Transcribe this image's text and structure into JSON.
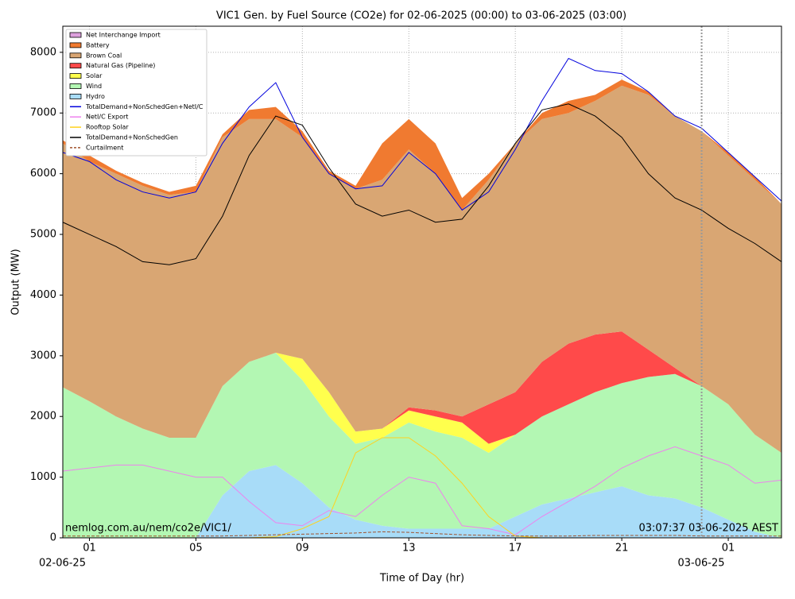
{
  "chart_data": {
    "type": "stacked_area",
    "title": "VIC1 Gen. by Fuel Source (CO2e) for 02-06-2025 (00:00) to 03-06-2025 (03:00)",
    "x_label": "Time of Day (hr)",
    "y_label": "Output (MW)",
    "x": [
      0,
      1,
      2,
      3,
      4,
      5,
      6,
      7,
      8,
      9,
      10,
      11,
      12,
      13,
      14,
      15,
      16,
      17,
      18,
      19,
      20,
      21,
      22,
      23,
      24,
      25,
      26,
      27
    ],
    "xlim": [
      0,
      27
    ],
    "xticks": [
      {
        "value": 1,
        "label": "01"
      },
      {
        "value": 5,
        "label": "05"
      },
      {
        "value": 9,
        "label": "09"
      },
      13,
      17,
      21,
      25
    ],
    "xticks_fixed": [
      {
        "value": 25,
        "label": "01"
      }
    ],
    "date_labels": [
      {
        "value": 1,
        "label": "02-06-25"
      },
      {
        "value": 25,
        "label": "03-06-25"
      }
    ],
    "day_boundary": 24,
    "ylim": [
      0,
      8430
    ],
    "yticks": [
      0,
      1000,
      2000,
      3000,
      4000,
      5000,
      6000,
      7000,
      8000
    ],
    "grid": true,
    "legend": "upper left",
    "annotations": [
      "nemlog.com.au/nem/co2e/VIC1/",
      "03:07:37 03-06-2025 AEST"
    ],
    "series": [
      {
        "name": "Net Interchange Import",
        "color": "#dda0dd",
        "values": [
          0,
          0,
          0,
          0,
          0,
          0,
          0,
          0,
          0,
          0,
          0,
          0,
          0,
          0,
          0,
          0,
          0,
          0,
          0,
          0,
          0,
          0,
          0,
          0,
          0,
          0,
          0,
          0
        ]
      },
      {
        "name": "Battery",
        "color": "#f07a30",
        "values": [
          50,
          100,
          50,
          50,
          50,
          100,
          50,
          150,
          200,
          100,
          50,
          50,
          600,
          500,
          500,
          200,
          100,
          0,
          100,
          200,
          100,
          100,
          50,
          0,
          0,
          50,
          50,
          0
        ]
      },
      {
        "name": "Brown Coal",
        "color": "#d9a673",
        "values": [
          4020,
          3950,
          4000,
          4000,
          4000,
          4050,
          4100,
          4000,
          3850,
          3650,
          3600,
          4000,
          4100,
          4250,
          3900,
          3400,
          3700,
          4100,
          4000,
          3800,
          3850,
          4050,
          4200,
          4150,
          4200,
          4100,
          4200,
          4100
        ]
      },
      {
        "name": "Natural Gas (Pipeline)",
        "color": "#ff4a4a",
        "values": [
          0,
          0,
          0,
          0,
          0,
          0,
          0,
          0,
          0,
          0,
          0,
          0,
          0,
          50,
          100,
          100,
          650,
          700,
          900,
          1000,
          950,
          850,
          450,
          100,
          0,
          0,
          0,
          0
        ]
      },
      {
        "name": "Solar",
        "color": "#ffff4d",
        "values": [
          0,
          0,
          0,
          0,
          0,
          0,
          0,
          0,
          0,
          350,
          400,
          200,
          150,
          200,
          250,
          250,
          150,
          0,
          0,
          0,
          0,
          0,
          0,
          0,
          0,
          0,
          0,
          0
        ]
      },
      {
        "name": "Wind",
        "color": "#b3f7b3",
        "values": [
          2480,
          2250,
          2000,
          1800,
          1650,
          1650,
          1800,
          1800,
          1850,
          1700,
          1500,
          1250,
          1450,
          1750,
          1600,
          1500,
          1250,
          1350,
          1450,
          1550,
          1650,
          1700,
          1950,
          2050,
          2000,
          1900,
          1600,
          1400
        ]
      },
      {
        "name": "Hydro",
        "color": "#a8dcf8",
        "values": [
          0,
          0,
          0,
          0,
          0,
          0,
          700,
          1100,
          1200,
          900,
          500,
          300,
          200,
          150,
          150,
          150,
          150,
          350,
          550,
          650,
          750,
          850,
          700,
          650,
          500,
          300,
          100,
          0
        ]
      }
    ],
    "lines": [
      {
        "name": "TotalDemand+NonSchedGen+NetI/C",
        "color": "#0000dd",
        "values": [
          6350,
          6200,
          5900,
          5700,
          5600,
          5700,
          6500,
          7100,
          7500,
          6600,
          6000,
          5750,
          5800,
          6350,
          6000,
          5400,
          5700,
          6400,
          7200,
          7900,
          7700,
          7650,
          7350,
          6950,
          6750,
          6350,
          5950,
          5550
        ]
      },
      {
        "name": "NetI/C Export",
        "color": "#ee82ee",
        "values": [
          1100,
          1150,
          1200,
          1200,
          1100,
          1000,
          1000,
          600,
          250,
          200,
          450,
          350,
          700,
          1000,
          900,
          200,
          150,
          50,
          350,
          600,
          850,
          1150,
          1350,
          1500,
          1350,
          1200,
          900,
          950
        ]
      },
      {
        "name": "Rooftop Solar",
        "color": "#ffd21f",
        "values": [
          0,
          0,
          0,
          0,
          0,
          0,
          0,
          0,
          20,
          150,
          350,
          1400,
          1650,
          1650,
          1350,
          900,
          350,
          30,
          0,
          0,
          0,
          0,
          0,
          0,
          0,
          0,
          0,
          0
        ]
      },
      {
        "name": "TotalDemand+NonSchedGen",
        "color": "#000000",
        "values": [
          5200,
          5000,
          4800,
          4550,
          4500,
          4600,
          5300,
          6300,
          6950,
          6800,
          6100,
          5500,
          5300,
          5400,
          5200,
          5250,
          5800,
          6500,
          7050,
          7150,
          6950,
          6600,
          6000,
          5600,
          5400,
          5100,
          4850,
          4550
        ]
      },
      {
        "name": "Curtailment",
        "color": "#a0522d",
        "dashed": true,
        "values": [
          30,
          30,
          30,
          30,
          30,
          30,
          30,
          40,
          50,
          60,
          70,
          80,
          100,
          90,
          70,
          50,
          40,
          30,
          30,
          30,
          40,
          40,
          40,
          40,
          30,
          30,
          30,
          30
        ]
      }
    ]
  }
}
